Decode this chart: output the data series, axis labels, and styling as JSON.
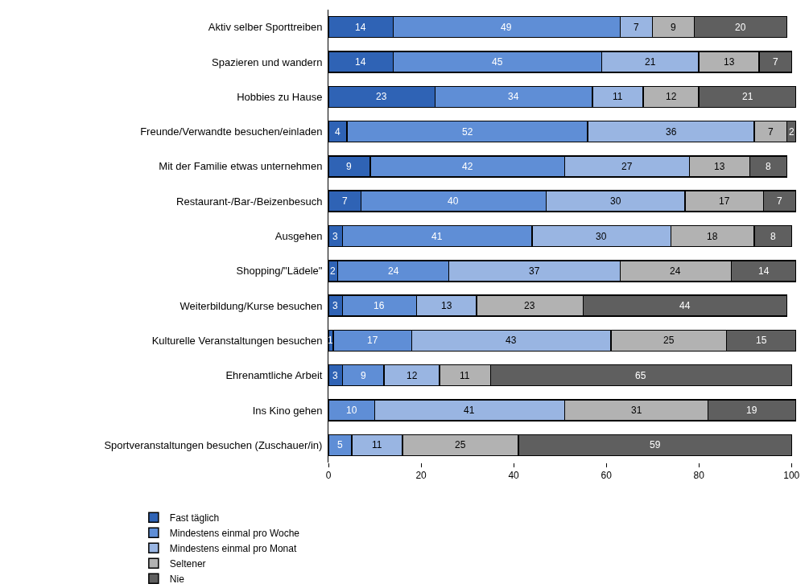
{
  "chart_data": {
    "type": "bar",
    "orientation": "horizontal",
    "stacked": true,
    "grid": false,
    "legend": "bottom",
    "categories": [
      "Aktiv selber Sporttreiben",
      "Spazieren und wandern",
      "Hobbies zu Hause",
      "Freunde/Verwandte besuchen/einladen",
      "Mit der Familie etwas unternehmen",
      "Restaurant-/Bar-/Beizenbesuch",
      "Ausgehen",
      "Shopping/\"Lädele\"",
      "Weiterbildung/Kurse besuchen",
      "Kulturelle Veranstaltungen besuchen",
      "Ehrenamtliche Arbeit",
      "Ins Kino gehen",
      "Sportveranstaltungen besuchen (Zuschauer/in)"
    ],
    "xlim": [
      0,
      101
    ],
    "xticks": [
      0,
      20,
      40,
      60,
      80,
      100
    ],
    "series": [
      {
        "name": "Fast täglich",
        "color": "#2f63b5",
        "values": [
          14,
          14,
          23,
          4,
          9,
          7,
          3,
          2,
          3,
          1,
          3,
          0,
          0
        ],
        "value_labels": [
          "14",
          "14",
          "23",
          "4",
          "9",
          "7",
          "3",
          "2",
          "3",
          "1",
          "3",
          null,
          null
        ]
      },
      {
        "name": "Mindestens einmal pro Woche",
        "color": "#5f8ed6",
        "values": [
          49,
          45,
          34,
          52,
          42,
          40,
          41,
          24,
          16,
          17,
          9,
          10,
          5
        ],
        "value_labels": [
          "49",
          "45",
          "34",
          "52",
          "42",
          "40",
          "41",
          "24",
          "16",
          "17",
          "9",
          "10",
          "5"
        ]
      },
      {
        "name": "Mindestens einmal pro Monat",
        "color": "#99b5e2",
        "values": [
          7,
          21,
          11,
          36,
          27,
          30,
          30,
          37,
          13,
          43,
          12,
          41,
          11
        ],
        "value_labels": [
          "7",
          "21",
          "11",
          "36",
          "27",
          "30",
          "30",
          "37",
          "13",
          "43",
          "12",
          "41",
          "11"
        ]
      },
      {
        "name": "Seltener",
        "color": "#b2b2b2",
        "values": [
          9,
          13,
          12,
          7,
          13,
          17,
          18,
          24,
          23,
          25,
          11,
          31,
          25
        ],
        "value_labels": [
          "9",
          "13",
          "12",
          "7",
          "13",
          "17",
          "18",
          "24",
          "23",
          "25",
          "11",
          "31",
          "25"
        ]
      },
      {
        "name": "Nie",
        "color": "#5f5f5f",
        "values": [
          20,
          7,
          21,
          2,
          8,
          7,
          8,
          14,
          44,
          15,
          65,
          19,
          59
        ],
        "value_labels": [
          "20",
          "7",
          "21",
          "2",
          "8",
          "7",
          "8",
          "14",
          "44",
          "15",
          "65",
          "19",
          "59"
        ]
      }
    ]
  }
}
